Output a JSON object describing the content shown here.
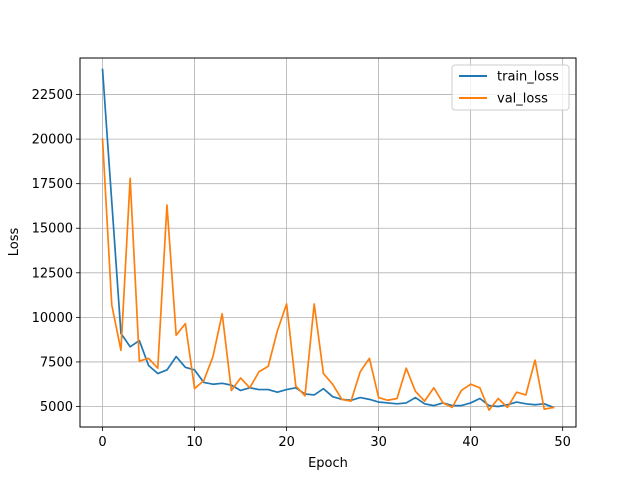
{
  "chart_data": {
    "type": "line",
    "title": "",
    "xlabel": "Epoch",
    "ylabel": "Loss",
    "xlim": [
      -2.45,
      51.45
    ],
    "ylim": [
      3850,
      24550
    ],
    "xticks": [
      0,
      10,
      20,
      30,
      40,
      50
    ],
    "yticks": [
      5000,
      7500,
      10000,
      12500,
      15000,
      17500,
      20000,
      22500
    ],
    "grid": true,
    "legend_position": "top-right",
    "x": [
      0,
      1,
      2,
      3,
      4,
      5,
      6,
      7,
      8,
      9,
      10,
      11,
      12,
      13,
      14,
      15,
      16,
      17,
      18,
      19,
      20,
      21,
      22,
      23,
      24,
      25,
      26,
      27,
      28,
      29,
      30,
      31,
      32,
      33,
      34,
      35,
      36,
      37,
      38,
      39,
      40,
      41,
      42,
      43,
      44,
      45,
      46,
      47,
      48,
      49
    ],
    "series": [
      {
        "name": "train_loss",
        "color": "#1f77b4",
        "values": [
          23900,
          16500,
          9100,
          8350,
          8700,
          7300,
          6850,
          7050,
          7800,
          7200,
          7050,
          6350,
          6250,
          6300,
          6200,
          5900,
          6050,
          5950,
          5950,
          5800,
          5950,
          6050,
          5700,
          5650,
          6000,
          5550,
          5400,
          5350,
          5500,
          5400,
          5250,
          5200,
          5150,
          5200,
          5500,
          5150,
          5050,
          5200,
          5050,
          5050,
          5200,
          5450,
          5050,
          5000,
          5100,
          5250,
          5150,
          5100,
          5150,
          4950
        ]
      },
      {
        "name": "val_loss",
        "color": "#ff7f0e",
        "values": [
          20000,
          10700,
          8150,
          17800,
          7550,
          7700,
          7150,
          16300,
          9000,
          9650,
          6000,
          6450,
          7800,
          10200,
          5900,
          6600,
          6050,
          6950,
          7250,
          9250,
          10750,
          6150,
          5600,
          10750,
          6850,
          6250,
          5400,
          5300,
          6950,
          7700,
          5500,
          5350,
          5450,
          7150,
          5850,
          5300,
          6050,
          5200,
          4950,
          5900,
          6250,
          6050,
          4800,
          5450,
          4950,
          5800,
          5650,
          7600,
          4850,
          4950
        ]
      }
    ]
  }
}
